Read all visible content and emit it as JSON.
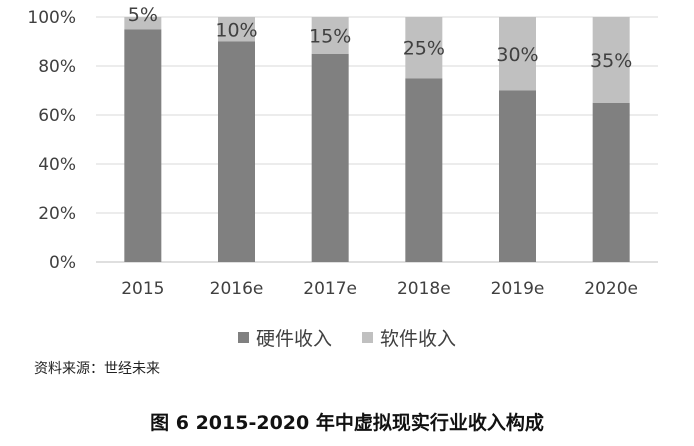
{
  "chart_data": {
    "type": "bar",
    "stacked": true,
    "categories": [
      "2015",
      "2016e",
      "2017e",
      "2018e",
      "2019e",
      "2020e"
    ],
    "series": [
      {
        "name": "硬件收入",
        "values": [
          95,
          90,
          85,
          75,
          70,
          65
        ],
        "color": "#808080"
      },
      {
        "name": "软件收入",
        "values": [
          5,
          10,
          15,
          25,
          30,
          35
        ],
        "color": "#c0c0c0"
      }
    ],
    "data_labels": [
      "5%",
      "10%",
      "15%",
      "25%",
      "30%",
      "35%"
    ],
    "yticks": [
      "0%",
      "20%",
      "40%",
      "60%",
      "80%",
      "100%"
    ],
    "ylim": [
      0,
      100
    ],
    "grid": true,
    "legend_position": "bottom"
  },
  "source": "资料来源：世经未来",
  "caption": "图 6 2015-2020 年中虚拟现实行业收入构成"
}
